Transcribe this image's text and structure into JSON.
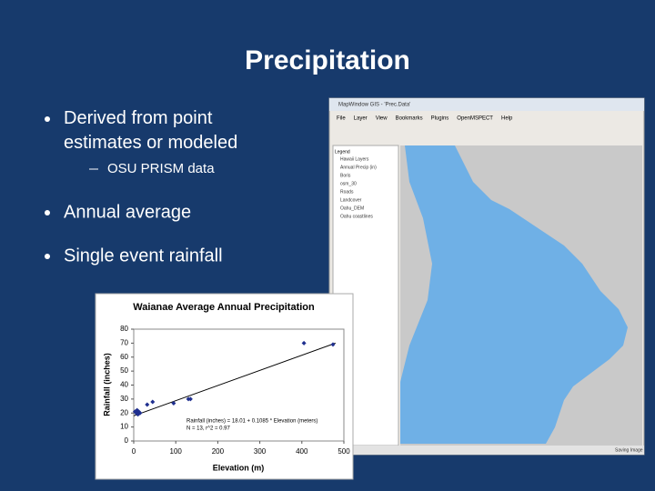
{
  "slide": {
    "title": "Precipitation",
    "bullets": [
      {
        "text": "Derived from point estimates or modeled",
        "sub": [
          "OSU PRISM data"
        ]
      },
      {
        "text": "Annual average",
        "sub": []
      },
      {
        "text": "Single event rainfall",
        "sub": []
      }
    ]
  },
  "screenshot": {
    "window_title": "MapWindow GIS - 'Prec.Data'",
    "menu": [
      "File",
      "Layer",
      "View",
      "Bookmarks",
      "Plugins",
      "OpenMSPECT",
      "Help"
    ],
    "legend_header": "Legend",
    "layers": [
      "Hawaii Layers",
      "Annual Precip (in)",
      "Boris",
      "osm_30",
      "Roads",
      "Landcover",
      "Oahu_DEM",
      "Oahu coastlines"
    ],
    "status": "Saving Image"
  },
  "chart_data": {
    "type": "scatter",
    "title": "Waianae Average Annual Precipitation",
    "x_label": "Elevation (m)",
    "y_label": "Rainfall (inches)",
    "annotations": [
      "Rainfall (inches) = 18.01 + 0.1085 * Elevation (meters)",
      "N = 13, r^2 = 0.97"
    ],
    "x": [
      3,
      6,
      8,
      10,
      12,
      15,
      32,
      45,
      95,
      130,
      135,
      405,
      474
    ],
    "values": [
      21,
      20,
      22,
      19,
      21,
      20,
      26,
      28,
      27,
      30,
      30,
      70,
      69
    ],
    "color": "#1f2f8f",
    "trendline": {
      "x": [
        0,
        480
      ],
      "values": [
        18,
        70
      ],
      "color": "#000000"
    },
    "xlim": [
      0,
      500
    ],
    "xticks": [
      0,
      100,
      200,
      300,
      400,
      500
    ],
    "ylim": [
      0,
      80
    ],
    "yticks": [
      0,
      10,
      20,
      30,
      40,
      50,
      60,
      70,
      80
    ],
    "grid": false
  }
}
